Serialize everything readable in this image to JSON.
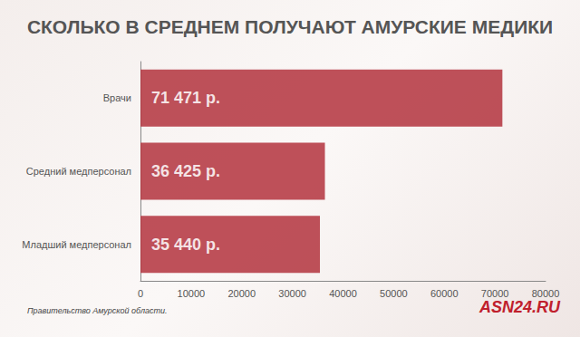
{
  "chart_data": {
    "type": "bar",
    "title": "СКОЛЬКО В СРЕДНЕМ ПОЛУЧАЮТ АМУРСКИЕ МЕДИКИ",
    "orientation": "horizontal",
    "categories": [
      "Врачи",
      "Средний медперсонал",
      "Младший медперсонал"
    ],
    "values": [
      71471,
      36425,
      35440
    ],
    "value_labels": [
      "71 471 р.",
      "36 425 р.",
      "35 440 р."
    ],
    "data_labels": true,
    "color": "#b3333d",
    "xlim": [
      0,
      80000
    ],
    "xticks": [
      0,
      10000,
      20000,
      30000,
      40000,
      50000,
      60000,
      70000,
      80000
    ],
    "grid": false,
    "annotations": [
      "Правительство Амурской области.",
      "ASN24.RU"
    ]
  }
}
